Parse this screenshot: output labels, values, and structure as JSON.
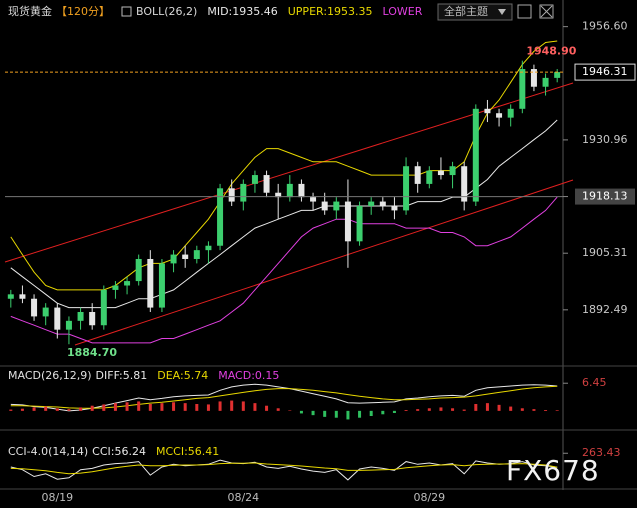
{
  "header": {
    "symbol": "现货黄金",
    "period": "【120分】",
    "indicator": "BOLL(26,2)",
    "theme_select": "全部主题"
  },
  "watermark": "FX678",
  "chart_data": [
    {
      "type": "candlestick",
      "categories": [
        null,
        null,
        null,
        null,
        "08/19",
        null,
        null,
        null,
        null,
        null,
        null,
        null,
        null,
        null,
        null,
        null,
        null,
        null,
        null,
        null,
        "08/24",
        null,
        null,
        null,
        null,
        null,
        null,
        null,
        null,
        null,
        null,
        null,
        null,
        null,
        null,
        null,
        "08/29",
        null,
        null,
        null,
        null,
        null,
        null,
        null,
        null,
        null,
        null,
        null
      ],
      "open": [
        1895,
        1896,
        1895,
        1891,
        1893,
        1888,
        1890,
        1892,
        1889,
        1897,
        1898,
        1899,
        1904,
        1893,
        1903,
        1905,
        1904,
        1906,
        1907,
        1920,
        1917,
        1921,
        1923,
        1919,
        1918,
        1921,
        1918,
        1917,
        1915,
        1917,
        1908,
        1916,
        1917,
        1916,
        1915,
        1925,
        1921,
        1924,
        1923,
        1925,
        1917,
        1938,
        1937,
        1936,
        1938,
        1947,
        1943,
        1945
      ],
      "high": [
        1897,
        1898,
        1896,
        1894,
        1894,
        1891,
        1893,
        1894,
        1898,
        1899,
        1900,
        1905,
        1906,
        1904,
        1906,
        1907,
        1907,
        1908,
        1921,
        1922,
        1922,
        1924,
        1924,
        1921,
        1923,
        1922,
        1919,
        1919,
        1918,
        1922,
        1917,
        1918,
        1918,
        1918,
        1927,
        1926,
        1925,
        1927,
        1926,
        1926,
        1939,
        1940,
        1938,
        1939,
        1948.9,
        1948,
        1946,
        1947
      ],
      "low": [
        1893,
        1894,
        1890,
        1889,
        1886,
        1884.7,
        1888,
        1888,
        1888,
        1895,
        1896,
        1898,
        1892,
        1892,
        1901,
        1902,
        1903,
        1903,
        1906,
        1916,
        1915,
        1919,
        1918,
        1913,
        1917,
        1917,
        1915,
        1914,
        1913,
        1902,
        1907,
        1914,
        1915,
        1913,
        1914,
        1919,
        1920,
        1922,
        1920,
        1915,
        1916,
        1935,
        1934,
        1934,
        1937,
        1942,
        1941,
        1944
      ],
      "close": [
        1896,
        1895,
        1891,
        1893,
        1888,
        1890,
        1892,
        1889,
        1897,
        1898,
        1899,
        1904,
        1893,
        1903,
        1905,
        1904,
        1906,
        1907,
        1920,
        1917,
        1921,
        1923,
        1919,
        1918,
        1921,
        1918,
        1917,
        1915,
        1917,
        1908,
        1916,
        1917,
        1916,
        1915,
        1925,
        1921,
        1924,
        1923,
        1925,
        1917,
        1938,
        1937,
        1936,
        1938,
        1947,
        1943,
        1945,
        1946.31
      ],
      "up_color": "#3ccf6e",
      "down_color": "#e6e6e6",
      "series": [
        {
          "name": "MID:1935.46",
          "color": "#e8e8e8",
          "style": "line",
          "values": [
            1902,
            1900,
            1898,
            1896,
            1894,
            1893,
            1893,
            1893,
            1893,
            1893,
            1894,
            1895,
            1895,
            1896,
            1897,
            1899,
            1901,
            1903,
            1905,
            1907,
            1909,
            1911,
            1912,
            1913,
            1914,
            1915,
            1915,
            1916,
            1916,
            1916,
            1916,
            1916,
            1916,
            1916,
            1916,
            1917,
            1917,
            1917,
            1918,
            1918,
            1920,
            1922,
            1925,
            1927,
            1929,
            1931,
            1933,
            1935.46
          ]
        },
        {
          "name": "UPPER:1953.35",
          "color": "#e8d800",
          "style": "line",
          "values": [
            1909,
            1905,
            1901,
            1898,
            1897,
            1897,
            1897,
            1897,
            1897,
            1898,
            1900,
            1902,
            1903,
            1903,
            1904,
            1907,
            1910,
            1913,
            1917,
            1921,
            1924,
            1927,
            1929,
            1929,
            1928,
            1927,
            1926,
            1926,
            1926,
            1925,
            1924,
            1923,
            1923,
            1923,
            1923,
            1923,
            1924,
            1924,
            1924,
            1926,
            1932,
            1937,
            1940,
            1944,
            1948,
            1951,
            1953,
            1953.35
          ]
        },
        {
          "name": "LOWER",
          "color": "#e040e0",
          "style": "line",
          "values": [
            1891,
            1890,
            1889,
            1888,
            1887,
            1887,
            1886,
            1885,
            1885,
            1885,
            1885,
            1885,
            1885,
            1886,
            1886,
            1887,
            1888,
            1889,
            1890,
            1892,
            1894,
            1897,
            1900,
            1903,
            1906,
            1909,
            1911,
            1912,
            1913,
            1913,
            1912,
            1912,
            1912,
            1912,
            1911,
            1911,
            1911,
            1910,
            1910,
            1909,
            1907,
            1907,
            1908,
            1909,
            1911,
            1913,
            1915,
            1918
          ]
        }
      ],
      "ylim": [
        1880,
        1961.5
      ],
      "yticks": [
        {
          "value": 1956.6,
          "label": "1956.60"
        },
        1930.96,
        1918.13,
        1905.31,
        1892.49
      ],
      "current_price": 1946.31,
      "crosshair_price": 1918.13,
      "high_label": {
        "value": 1948.9,
        "label": "1948.90"
      },
      "low_label": {
        "value": 1884.7,
        "label": "1884.70"
      }
    },
    {
      "type": "macd",
      "title": "MACD(26,12,9)",
      "series": [
        {
          "name": "DIFF:5.81",
          "color": "#e8e8e8",
          "style": "line",
          "values": [
            1.5,
            1.4,
            1.0,
            0.8,
            0.4,
            0.0,
            0.2,
            0.6,
            1.2,
            1.8,
            2.4,
            3.0,
            2.6,
            2.9,
            3.3,
            3.5,
            3.6,
            3.7,
            4.8,
            5.6,
            6.0,
            6.2,
            6.0,
            5.6,
            5.2,
            4.6,
            4.0,
            3.4,
            2.8,
            1.9,
            1.8,
            1.9,
            2.0,
            2.1,
            2.8,
            3.0,
            3.3,
            3.5,
            3.6,
            3.4,
            4.8,
            5.4,
            5.6,
            5.8,
            6.0,
            6.1,
            6.0,
            5.81
          ]
        },
        {
          "name": "DEA:5.74",
          "color": "#e8d800",
          "style": "line",
          "values": [
            1.2,
            1.2,
            1.1,
            1.0,
            0.9,
            0.7,
            0.6,
            0.6,
            0.7,
            0.9,
            1.2,
            1.5,
            1.8,
            2.0,
            2.3,
            2.6,
            2.9,
            3.1,
            3.5,
            3.9,
            4.3,
            4.7,
            5.0,
            5.2,
            5.2,
            5.0,
            4.8,
            4.5,
            4.2,
            3.8,
            3.4,
            3.1,
            2.8,
            2.6,
            2.6,
            2.7,
            2.8,
            3.0,
            3.1,
            3.2,
            3.5,
            3.9,
            4.3,
            4.7,
            5.1,
            5.4,
            5.6,
            5.74
          ]
        },
        {
          "name": "MACD:0.15",
          "color": "#e040e0",
          "style": "bar",
          "up_color": "#e03030",
          "down_color": "#2fbf5f",
          "values": [
            0.3,
            0.5,
            0.8,
            1.0,
            0.6,
            0.4,
            0.8,
            1.2,
            1.5,
            1.8,
            2.0,
            2.2,
            1.6,
            1.8,
            2.0,
            1.8,
            1.6,
            1.5,
            2.2,
            2.4,
            2.2,
            1.8,
            1.2,
            0.6,
            0.1,
            -0.6,
            -1.0,
            -1.4,
            -1.6,
            -2.0,
            -1.6,
            -1.2,
            -0.8,
            -0.5,
            0.2,
            0.4,
            0.6,
            0.8,
            0.6,
            0.3,
            1.6,
            1.8,
            1.4,
            1.0,
            0.6,
            0.4,
            0.2,
            0.15
          ]
        }
      ],
      "ylim": [
        -4,
        10
      ],
      "yticks": [
        6.45
      ]
    },
    {
      "type": "cci",
      "title": "CCI-4.0(14,14)",
      "series": [
        {
          "name": "CCI:56.24",
          "color": "#e8e8e8",
          "style": "line",
          "values": [
            60,
            20,
            -80,
            -40,
            -120,
            -100,
            20,
            40,
            90,
            110,
            120,
            140,
            -60,
            60,
            100,
            80,
            90,
            100,
            160,
            120,
            110,
            130,
            60,
            40,
            70,
            30,
            0,
            -20,
            20,
            -130,
            30,
            60,
            40,
            10,
            140,
            100,
            120,
            90,
            110,
            -40,
            150,
            120,
            100,
            110,
            140,
            90,
            80,
            56.24
          ]
        },
        {
          "name": "MCCI:56.41",
          "color": "#e8d800",
          "style": "line",
          "values": [
            40,
            35,
            20,
            5,
            -20,
            -40,
            -30,
            -10,
            20,
            50,
            70,
            90,
            80,
            80,
            85,
            90,
            90,
            95,
            110,
            115,
            115,
            120,
            105,
            95,
            85,
            75,
            60,
            45,
            35,
            10,
            10,
            15,
            20,
            25,
            50,
            65,
            80,
            90,
            95,
            80,
            95,
            100,
            105,
            105,
            110,
            100,
            90,
            56.41
          ]
        }
      ],
      "ylim": [
        -250,
        400
      ],
      "yticks": [
        263.43
      ]
    }
  ]
}
